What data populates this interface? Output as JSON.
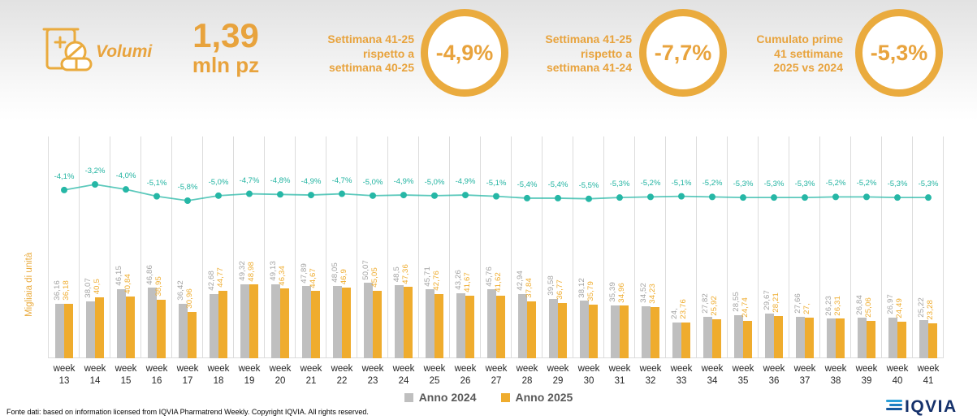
{
  "header": {
    "metric_label": "Volumi",
    "metric_value": "1,39",
    "metric_unit": "mln pz",
    "kpis": [
      {
        "label_lines": [
          "Settimana 41-25",
          "rispetto a",
          "settimana 40-25"
        ],
        "value": "-4,9%"
      },
      {
        "label_lines": [
          "Settimana 41-25",
          "rispetto a",
          "settimana 41-24"
        ],
        "value": "-7,7%"
      },
      {
        "label_lines": [
          "Cumulato prime",
          "41 settimane",
          "2025 vs 2024"
        ],
        "value": "-5,3%"
      }
    ]
  },
  "chart_data": {
    "type": "bar",
    "subtype": "grouped bars with percent line overlay",
    "x_label_word": "week",
    "weeks": [
      "13",
      "14",
      "15",
      "16",
      "17",
      "18",
      "19",
      "20",
      "21",
      "22",
      "23",
      "24",
      "25",
      "26",
      "27",
      "28",
      "29",
      "30",
      "31",
      "32",
      "33",
      "34",
      "35",
      "36",
      "37",
      "38",
      "39",
      "40",
      "41"
    ],
    "ylabel": "Migliaia di unità",
    "grid": "vertical light gray separators",
    "legend_position": "bottom",
    "series": [
      {
        "name": "Anno 2024",
        "color": "#bfbfbf",
        "label_color": "#a3a3a3",
        "values": [
          "36,16",
          "38,07",
          "46,15",
          "46,86",
          "36,42",
          "42,68",
          "49,32",
          "49,13",
          "47,89",
          "48,05",
          "50,07",
          "48,5",
          "45,71",
          "43,26",
          "45,76",
          "42,94",
          "39,58",
          "38,12",
          "35,39",
          "34,52",
          "24,",
          "27,82",
          "28,55",
          "29,67",
          "27,66",
          "26,23",
          "26,84",
          "26,97",
          "25,22"
        ]
      },
      {
        "name": "Anno 2025",
        "color": "#efac2e",
        "label_color": "#efac2e",
        "values": [
          "36,18",
          "40,5",
          "40,84",
          "38,95",
          "30,96",
          "44,77",
          "48,98",
          "46,34",
          "44,67",
          "46,9",
          "45,05",
          "47,36",
          "42,76",
          "41,67",
          "41,62",
          "37,84",
          "36,77",
          "35,79",
          "34,96",
          "34,23",
          "23,76",
          "25,92",
          "24,74",
          "28,21",
          "27,",
          "26,31",
          "25,06",
          "24,49",
          "23,28"
        ]
      }
    ],
    "line_color": "#26b7a6",
    "line_labels": [
      "-4,1%",
      "-3,2%",
      "-4,0%",
      "-5,1%",
      "-5,8%",
      "-5,0%",
      "-4,7%",
      "-4,8%",
      "-4,9%",
      "-4,7%",
      "-5,0%",
      "-4,9%",
      "-5,0%",
      "-4,9%",
      "-5,1%",
      "-5,4%",
      "-5,4%",
      "-5,5%",
      "-5,3%",
      "-5,2%",
      "-5,1%",
      "-5,2%",
      "-5,3%",
      "-5,3%",
      "-5,3%",
      "-5,2%",
      "-5,2%",
      "-5,3%",
      "-5,3%"
    ]
  },
  "legend": {
    "items": [
      {
        "label": "Anno 2024",
        "color": "#bfbfbf"
      },
      {
        "label": "Anno 2025",
        "color": "#efac2e"
      }
    ]
  },
  "footer": {
    "source_text": "Fonte dati: based on information licensed from IQVIA Pharmatrend Weekly. Copyright IQVIA. All rights reserved.",
    "logo_text": "IQVIA"
  },
  "colors": {
    "brand_orange": "#e8a33d",
    "bar_gray": "#bfbfbf",
    "bar_orange": "#efac2e",
    "teal": "#26b7a6"
  }
}
